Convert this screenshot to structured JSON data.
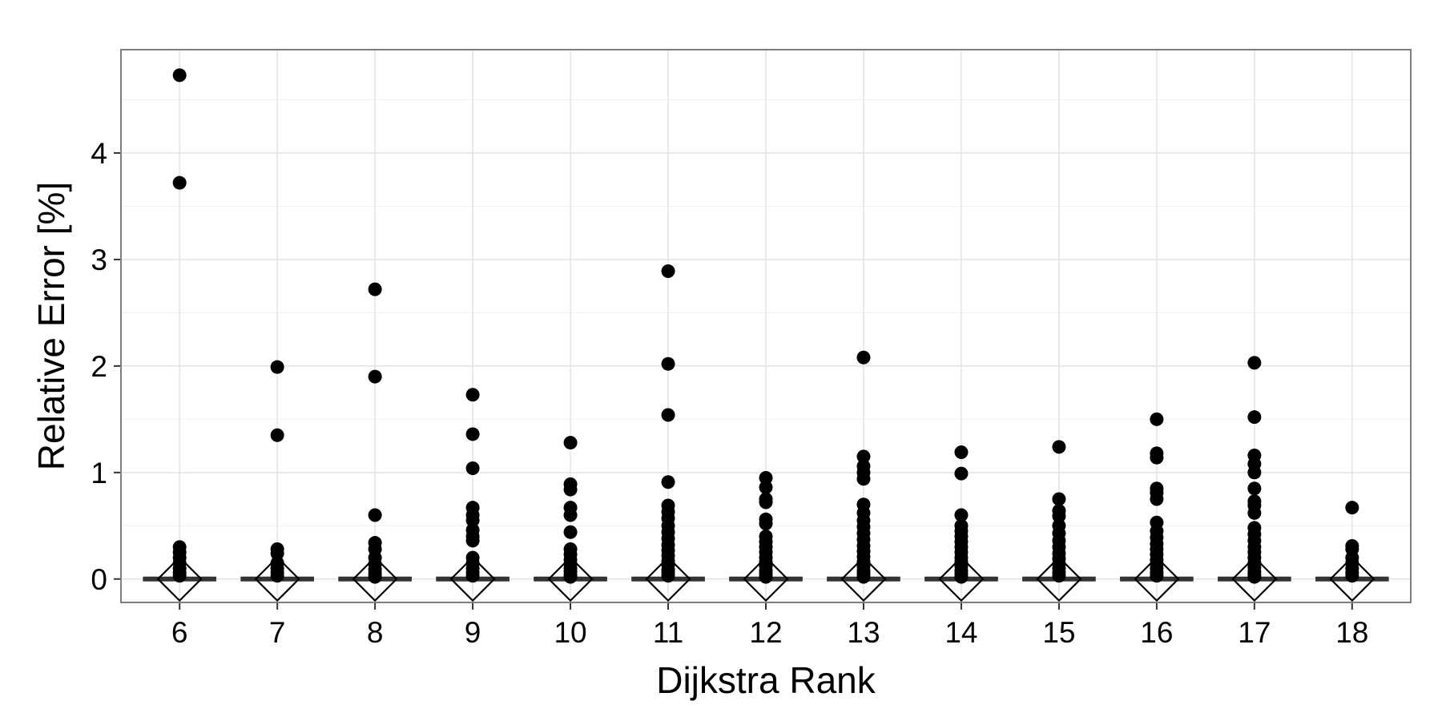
{
  "chart_data": {
    "type": "scatter",
    "title": "",
    "xlabel": "Dijkstra Rank",
    "ylabel": "Relative Error [%]",
    "x_ticks": [
      "6",
      "7",
      "8",
      "9",
      "10",
      "11",
      "12",
      "13",
      "14",
      "15",
      "16",
      "17",
      "18"
    ],
    "y_ticks": [
      "0",
      "1",
      "2",
      "3",
      "4"
    ],
    "ylim": [
      -0.22,
      4.97
    ],
    "grid": true,
    "legend": "none",
    "series": [
      {
        "x": "6",
        "median": 0,
        "iqr": [
          0,
          0
        ],
        "mean": 0.0,
        "outliers": [
          4.73,
          3.72,
          0.3,
          0.25,
          0.2,
          0.15,
          0.1,
          0.06,
          0.03
        ]
      },
      {
        "x": "7",
        "median": 0,
        "iqr": [
          0,
          0
        ],
        "mean": 0.0,
        "outliers": [
          1.99,
          1.35,
          0.28,
          0.24,
          0.15,
          0.1,
          0.06,
          0.03
        ]
      },
      {
        "x": "8",
        "median": 0,
        "iqr": [
          0,
          0
        ],
        "mean": 0.0,
        "outliers": [
          2.72,
          1.9,
          0.6,
          0.34,
          0.28,
          0.2,
          0.14,
          0.09,
          0.05,
          0.02
        ]
      },
      {
        "x": "9",
        "median": 0,
        "iqr": [
          0,
          0
        ],
        "mean": 0.0,
        "outliers": [
          1.73,
          1.36,
          1.04,
          0.67,
          0.6,
          0.55,
          0.46,
          0.4,
          0.36,
          0.2,
          0.15,
          0.1,
          0.06,
          0.03
        ]
      },
      {
        "x": "10",
        "median": 0,
        "iqr": [
          0,
          0
        ],
        "mean": 0.0,
        "outliers": [
          1.28,
          0.89,
          0.84,
          0.67,
          0.6,
          0.44,
          0.28,
          0.23,
          0.18,
          0.14,
          0.1,
          0.07,
          0.04,
          0.02
        ]
      },
      {
        "x": "11",
        "median": 0,
        "iqr": [
          0,
          0
        ],
        "mean": 0.0,
        "outliers": [
          2.89,
          2.02,
          1.54,
          0.91,
          0.69,
          0.63,
          0.57,
          0.5,
          0.44,
          0.38,
          0.32,
          0.27,
          0.22,
          0.17,
          0.13,
          0.09,
          0.06,
          0.03
        ]
      },
      {
        "x": "12",
        "median": 0,
        "iqr": [
          0,
          0
        ],
        "mean": 0.0,
        "outliers": [
          0.95,
          0.86,
          0.75,
          0.72,
          0.56,
          0.52,
          0.4,
          0.35,
          0.3,
          0.25,
          0.2,
          0.16,
          0.12,
          0.08,
          0.05,
          0.02
        ]
      },
      {
        "x": "13",
        "median": 0,
        "iqr": [
          0,
          0
        ],
        "mean": 0.0,
        "outliers": [
          2.08,
          1.15,
          1.06,
          1.0,
          0.94,
          0.7,
          0.62,
          0.55,
          0.49,
          0.43,
          0.37,
          0.31,
          0.26,
          0.21,
          0.16,
          0.12,
          0.08,
          0.05,
          0.02
        ]
      },
      {
        "x": "14",
        "median": 0,
        "iqr": [
          0,
          0
        ],
        "mean": 0.0,
        "outliers": [
          1.19,
          0.99,
          0.6,
          0.5,
          0.45,
          0.4,
          0.35,
          0.3,
          0.25,
          0.2,
          0.16,
          0.12,
          0.08,
          0.05,
          0.02
        ]
      },
      {
        "x": "15",
        "median": 0,
        "iqr": [
          0,
          0
        ],
        "mean": 0.0,
        "outliers": [
          1.24,
          0.75,
          0.64,
          0.59,
          0.5,
          0.43,
          0.36,
          0.3,
          0.24,
          0.19,
          0.14,
          0.1,
          0.06,
          0.03
        ]
      },
      {
        "x": "16",
        "median": 0,
        "iqr": [
          0,
          0
        ],
        "mean": 0.0,
        "outliers": [
          1.5,
          1.18,
          1.14,
          0.85,
          0.81,
          0.75,
          0.53,
          0.45,
          0.39,
          0.33,
          0.28,
          0.23,
          0.18,
          0.14,
          0.1,
          0.06,
          0.03
        ]
      },
      {
        "x": "17",
        "median": 0,
        "iqr": [
          0,
          0
        ],
        "mean": 0.0,
        "outliers": [
          2.03,
          1.52,
          1.16,
          1.08,
          1.0,
          0.85,
          0.73,
          0.69,
          0.62,
          0.48,
          0.42,
          0.36,
          0.3,
          0.25,
          0.2,
          0.15,
          0.11,
          0.07,
          0.04,
          0.02
        ]
      },
      {
        "x": "18",
        "median": 0,
        "iqr": [
          0,
          0
        ],
        "mean": 0.0,
        "outliers": [
          0.67,
          0.31,
          0.28,
          0.2,
          0.15,
          0.1,
          0.06,
          0.03
        ]
      }
    ]
  }
}
